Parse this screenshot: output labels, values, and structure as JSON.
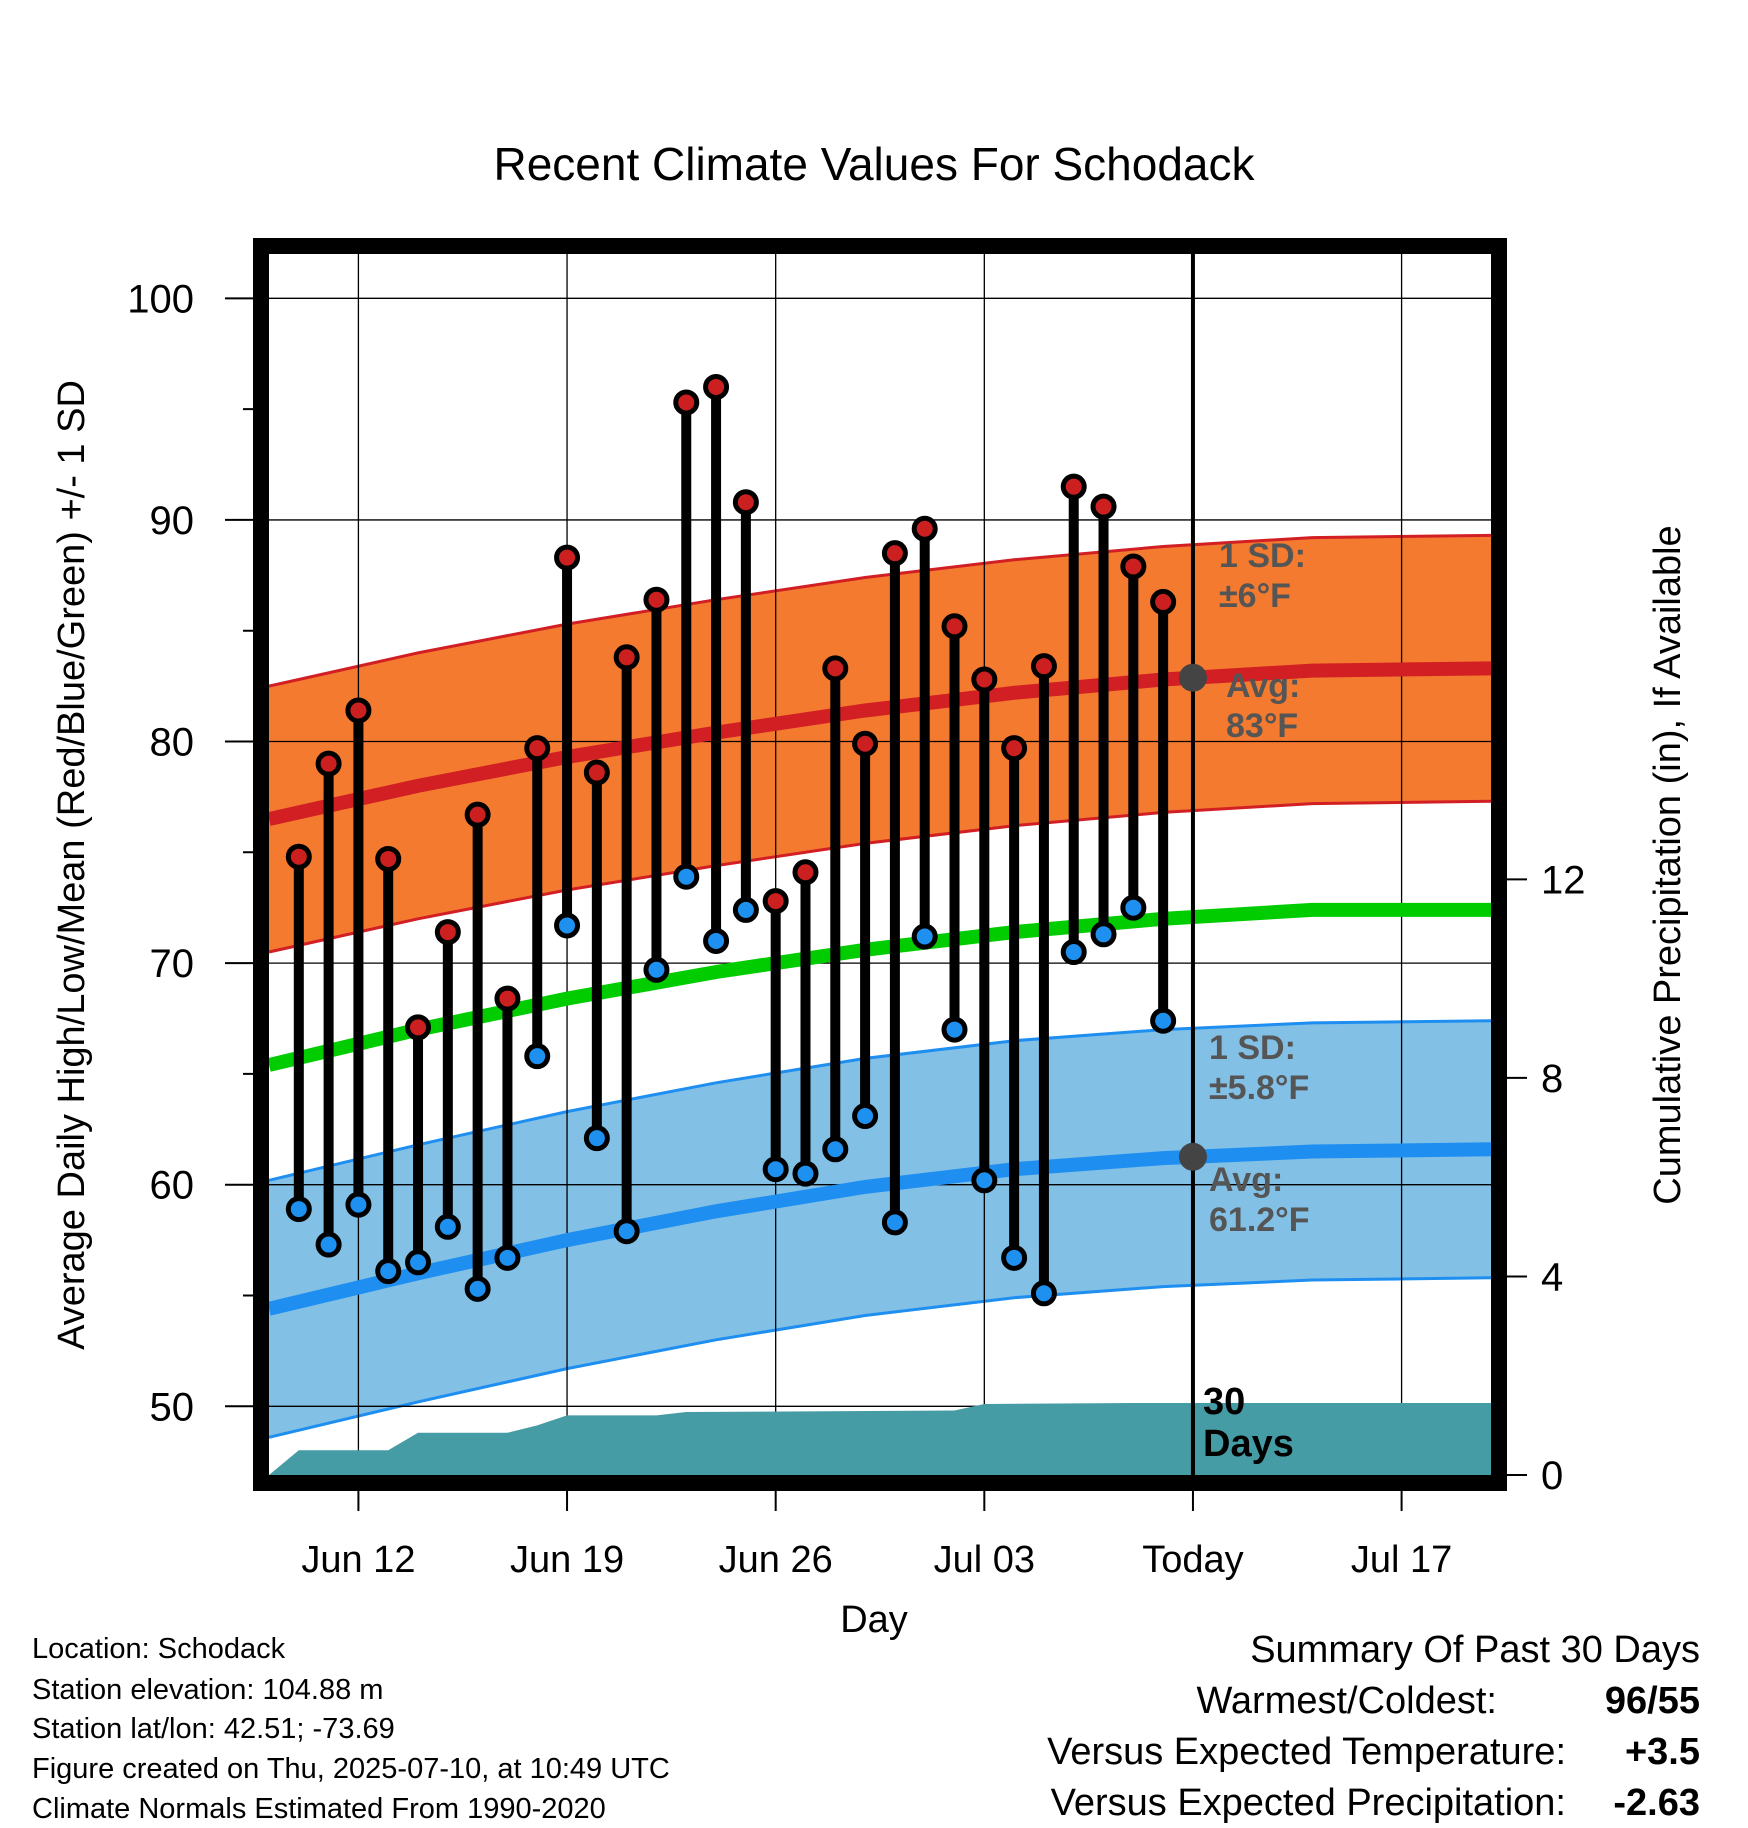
{
  "chart_data": {
    "type": "line",
    "title": "Recent Climate Values For Schodack",
    "xlabel": "Day",
    "ylabel": "Average Daily High/Low/Mean (Red/Blue/Green) +/- 1 SD",
    "y2label": "Cumulative Precipitation (in), If Available",
    "ylim": [
      46.9,
      102
    ],
    "y_ticks": [
      "50",
      "60",
      "70",
      "80",
      "90",
      "100"
    ],
    "y2lim": [
      0,
      24.6
    ],
    "y2_ticks": [
      "0",
      "4",
      "8",
      "12"
    ],
    "x_start": "2025-06-09",
    "x_end": "2025-07-20",
    "x_ticks": [
      {
        "date": "2025-06-12",
        "label": "Jun 12"
      },
      {
        "date": "2025-06-19",
        "label": "Jun 19"
      },
      {
        "date": "2025-06-26",
        "label": "Jun 26"
      },
      {
        "date": "2025-07-03",
        "label": "Jul 03"
      },
      {
        "date": "2025-07-10",
        "label": "Today"
      },
      {
        "date": "2025-07-17",
        "label": "Jul 17"
      }
    ],
    "today": "2025-07-10",
    "grid": true,
    "daily": {
      "dates": [
        "2025-06-10",
        "2025-06-11",
        "2025-06-12",
        "2025-06-13",
        "2025-06-14",
        "2025-06-15",
        "2025-06-16",
        "2025-06-17",
        "2025-06-18",
        "2025-06-19",
        "2025-06-20",
        "2025-06-21",
        "2025-06-22",
        "2025-06-23",
        "2025-06-24",
        "2025-06-25",
        "2025-06-26",
        "2025-06-27",
        "2025-06-28",
        "2025-06-29",
        "2025-06-30",
        "2025-07-01",
        "2025-07-02",
        "2025-07-03",
        "2025-07-04",
        "2025-07-05",
        "2025-07-06",
        "2025-07-07",
        "2025-07-08",
        "2025-07-09"
      ],
      "highs": [
        74.8,
        79.0,
        81.4,
        74.7,
        67.1,
        71.4,
        76.7,
        68.4,
        79.7,
        88.3,
        78.6,
        83.8,
        86.4,
        95.3,
        96.0,
        90.8,
        72.8,
        74.1,
        83.3,
        79.9,
        88.5,
        89.6,
        85.2,
        82.8,
        79.7,
        83.4,
        91.5,
        90.6,
        87.9,
        86.3
      ],
      "lows": [
        58.9,
        57.3,
        59.1,
        56.1,
        56.5,
        58.1,
        55.3,
        56.7,
        65.8,
        71.7,
        62.1,
        57.9,
        69.7,
        73.9,
        71.0,
        72.4,
        60.7,
        60.5,
        61.6,
        63.1,
        58.3,
        71.2,
        67.0,
        60.2,
        56.7,
        55.1,
        70.5,
        71.3,
        72.5,
        67.4
      ]
    },
    "normals": {
      "dates": [
        "2025-06-09",
        "2025-06-14",
        "2025-06-19",
        "2025-06-24",
        "2025-06-29",
        "2025-07-04",
        "2025-07-09",
        "2025-07-14",
        "2025-07-20"
      ],
      "high_avg": [
        76.5,
        78.0,
        79.3,
        80.4,
        81.4,
        82.2,
        82.8,
        83.2,
        83.3
      ],
      "low_avg": [
        54.4,
        56.0,
        57.5,
        58.8,
        59.9,
        60.7,
        61.2,
        61.5,
        61.6
      ],
      "mean_avg": [
        65.4,
        67.0,
        68.4,
        69.6,
        70.6,
        71.4,
        72.0,
        72.4,
        72.4
      ],
      "high_sd": 6.0,
      "low_sd": 5.8
    },
    "precip": {
      "dates": [
        "2025-06-09",
        "2025-06-10",
        "2025-06-13",
        "2025-06-14",
        "2025-06-17",
        "2025-06-18",
        "2025-06-19",
        "2025-06-22",
        "2025-06-23",
        "2025-07-02",
        "2025-07-03",
        "2025-07-08",
        "2025-07-20"
      ],
      "cumulative": [
        0,
        0.5,
        0.5,
        0.85,
        0.85,
        1.0,
        1.2,
        1.2,
        1.27,
        1.3,
        1.43,
        1.45,
        1.45
      ]
    },
    "annotations": {
      "high_sd_label": "1 SD:",
      "high_sd_value": "±6°F",
      "high_avg_label": "Avg:",
      "high_avg_value": "83°F",
      "low_sd_label": "1 SD:",
      "low_sd_value": "±5.8°F",
      "low_avg_label": "Avg:",
      "low_avg_value": "61.2°F",
      "days_number": "30",
      "days_word": "Days"
    },
    "colors": {
      "high_band": "#f47a30",
      "high_line": "#d21f24",
      "low_band": "#82c0e6",
      "low_line": "#1e8ff0",
      "mean_line": "#00cc00",
      "precip": "#469ca5",
      "high_dot": "#cc2020",
      "low_dot": "#1e90f0",
      "today_dot": "#444444",
      "temp_positive": "#d21f24",
      "precip_negative": "#a05a2c"
    }
  },
  "footer": {
    "location": "Location: Schodack",
    "elevation": "Station elevation: 104.88 m",
    "latlon": "Station lat/lon: 42.51; -73.69",
    "created": "Figure created on Thu, 2025-07-10, at 10:49 UTC",
    "normals": "Climate Normals Estimated From 1990-2020"
  },
  "summary": {
    "title": "Summary Of Past 30 Days",
    "warmest_label": "Warmest/Coldest:",
    "warmest_value": "96",
    "coldest_value": "55",
    "temp_label": "Versus Expected Temperature:",
    "temp_value": "+3.5",
    "precip_label": "Versus Expected Precipitation:",
    "precip_value": "-2.63"
  }
}
